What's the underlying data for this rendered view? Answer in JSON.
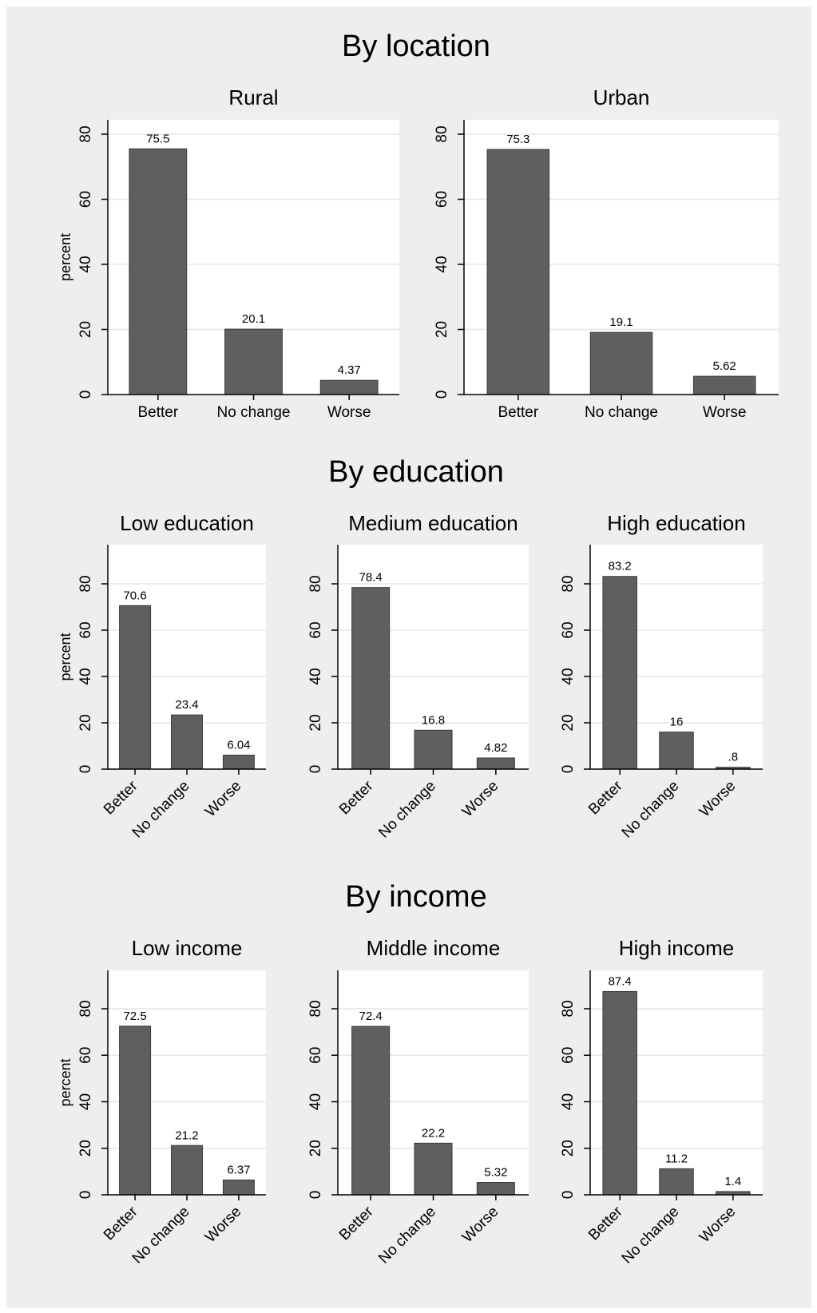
{
  "groups": [
    {
      "title": "By location",
      "ylabel": "percent",
      "panels": [
        {
          "title": "Rural",
          "values": [
            75.5,
            20.1,
            4.37
          ],
          "labels": [
            "75.5",
            "20.1",
            "4.37"
          ]
        },
        {
          "title": "Urban",
          "values": [
            75.3,
            19.1,
            5.62
          ],
          "labels": [
            "75.3",
            "19.1",
            "5.62"
          ]
        }
      ]
    },
    {
      "title": "By education",
      "ylabel": "percent",
      "panels": [
        {
          "title": "Low education",
          "values": [
            70.6,
            23.4,
            6.04
          ],
          "labels": [
            "70.6",
            "23.4",
            "6.04"
          ]
        },
        {
          "title": "Medium education",
          "values": [
            78.4,
            16.8,
            4.82
          ],
          "labels": [
            "78.4",
            "16.8",
            "4.82"
          ]
        },
        {
          "title": "High education",
          "values": [
            83.2,
            16,
            0.8
          ],
          "labels": [
            "83.2",
            "16",
            ".8"
          ]
        }
      ]
    },
    {
      "title": "By income",
      "ylabel": "percent",
      "panels": [
        {
          "title": "Low income",
          "values": [
            72.5,
            21.2,
            6.37
          ],
          "labels": [
            "72.5",
            "21.2",
            "6.37"
          ]
        },
        {
          "title": "Middle income",
          "values": [
            72.4,
            22.2,
            5.32
          ],
          "labels": [
            "72.4",
            "22.2",
            "5.32"
          ]
        },
        {
          "title": "High income",
          "values": [
            87.4,
            11.2,
            1.4
          ],
          "labels": [
            "87.4",
            "11.2",
            "1.4"
          ]
        }
      ]
    }
  ],
  "chart_data": {
    "type": "bar",
    "categories": [
      "Better",
      "No change",
      "Worse"
    ],
    "yticks": [
      "0",
      "20",
      "40",
      "60",
      "80"
    ],
    "ylabel": "percent",
    "grid": true,
    "colors": {
      "bar": "#5f5f5f",
      "plot_bg": "#ffffff",
      "outer_bg": "#eeeeee",
      "grid": "#e5e5e5"
    }
  }
}
